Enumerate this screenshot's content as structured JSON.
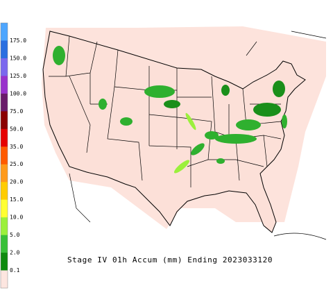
{
  "legend": {
    "labels": [
      "175.0",
      "150.0",
      "125.0",
      "100.0",
      "75.0",
      "50.0",
      "35.0",
      "25.0",
      "20.0",
      "15.0",
      "10.0",
      "5.0",
      "2.0",
      "0.1"
    ],
    "colors": [
      "#4da6ff",
      "#2a6fe0",
      "#7b68ee",
      "#9932cc",
      "#6a1b6a",
      "#8b0000",
      "#e60000",
      "#ff5a00",
      "#ff9a1a",
      "#ffcc00",
      "#ffff33",
      "#9bf03c",
      "#38c038",
      "#0e8a0e",
      "#fde6e0"
    ]
  },
  "caption": "Stage IV 01h Accum (mm) Ending 2023033120"
}
